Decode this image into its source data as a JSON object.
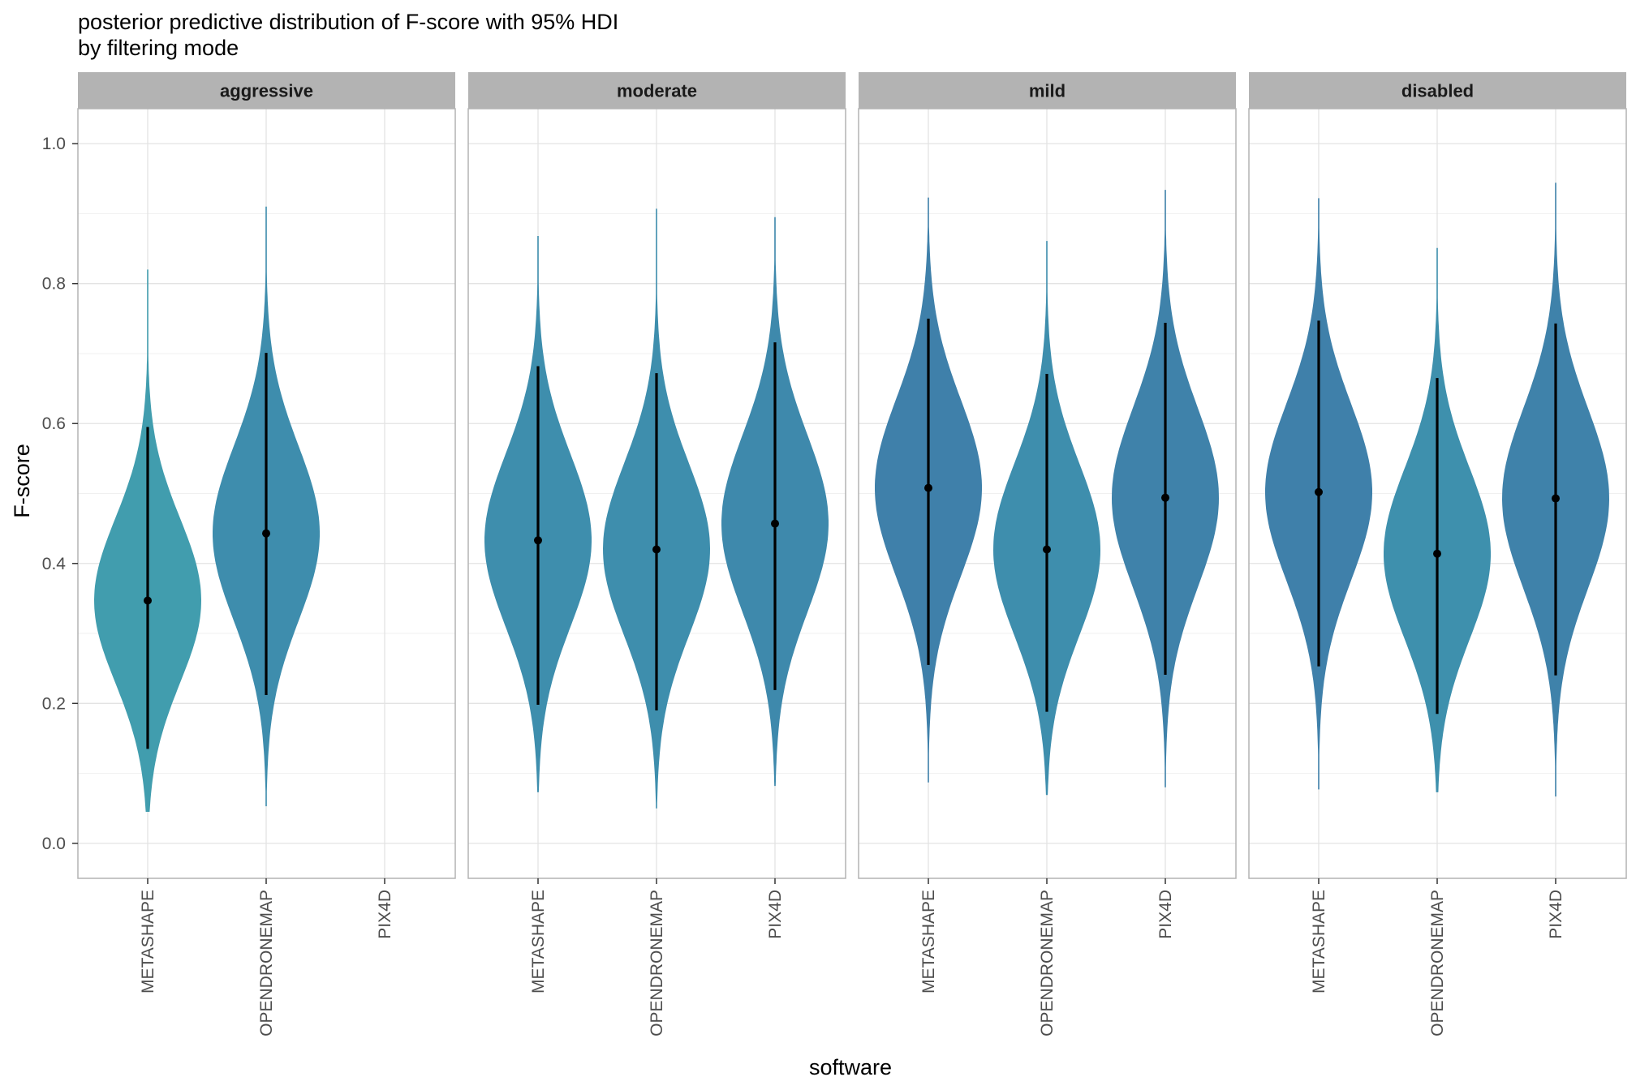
{
  "chart_data": {
    "type": "violin",
    "title_lines": [
      "posterior predictive distribution of F-score with 95% HDI",
      "by filtering mode"
    ],
    "xlabel": "software",
    "ylabel": "F-score",
    "ylim": [
      -0.05,
      1.05
    ],
    "y_ticks": [
      0.0,
      0.2,
      0.4,
      0.6,
      0.8,
      1.0
    ],
    "y_tick_labels": [
      "0.0",
      "0.2",
      "0.4",
      "0.6",
      "0.8",
      "1.0"
    ],
    "grid": true,
    "categories": [
      "METASHAPE",
      "OPENDRONEMAP",
      "PIX4D"
    ],
    "facets": [
      {
        "label": "aggressive",
        "groups": [
          {
            "software": "METASHAPE",
            "median": 0.347,
            "hdi": [
              0.135,
              0.595
            ],
            "range": [
              0.045,
              0.82
            ],
            "color": "#419DAE"
          },
          {
            "software": "OPENDRONEMAP",
            "median": 0.443,
            "hdi": [
              0.212,
              0.701
            ],
            "range": [
              0.053,
              0.91
            ],
            "color": "#3E8DAD"
          }
        ]
      },
      {
        "label": "moderate",
        "groups": [
          {
            "software": "METASHAPE",
            "median": 0.433,
            "hdi": [
              0.198,
              0.682
            ],
            "range": [
              0.073,
              0.868
            ],
            "color": "#3E8EAD"
          },
          {
            "software": "OPENDRONEMAP",
            "median": 0.42,
            "hdi": [
              0.19,
              0.672
            ],
            "range": [
              0.05,
              0.907
            ],
            "color": "#3E8EAD"
          },
          {
            "software": "PIX4D",
            "median": 0.457,
            "hdi": [
              0.219,
              0.716
            ],
            "range": [
              0.082,
              0.895
            ],
            "color": "#3E89AC"
          }
        ]
      },
      {
        "label": "mild",
        "groups": [
          {
            "software": "METASHAPE",
            "median": 0.508,
            "hdi": [
              0.255,
              0.75
            ],
            "range": [
              0.087,
              0.923
            ],
            "color": "#3F80AA"
          },
          {
            "software": "OPENDRONEMAP",
            "median": 0.42,
            "hdi": [
              0.188,
              0.671
            ],
            "range": [
              0.069,
              0.861
            ],
            "color": "#3E8EAD"
          },
          {
            "software": "PIX4D",
            "median": 0.494,
            "hdi": [
              0.241,
              0.744
            ],
            "range": [
              0.08,
              0.934
            ],
            "color": "#3F82AA"
          }
        ]
      },
      {
        "label": "disabled",
        "groups": [
          {
            "software": "METASHAPE",
            "median": 0.502,
            "hdi": [
              0.253,
              0.747
            ],
            "range": [
              0.077,
              0.922
            ],
            "color": "#3F80AA"
          },
          {
            "software": "OPENDRONEMAP",
            "median": 0.414,
            "hdi": [
              0.185,
              0.665
            ],
            "range": [
              0.073,
              0.851
            ],
            "color": "#3E90AD"
          },
          {
            "software": "PIX4D",
            "median": 0.493,
            "hdi": [
              0.24,
              0.743
            ],
            "range": [
              0.067,
              0.944
            ],
            "color": "#3F82AA"
          }
        ]
      }
    ]
  }
}
